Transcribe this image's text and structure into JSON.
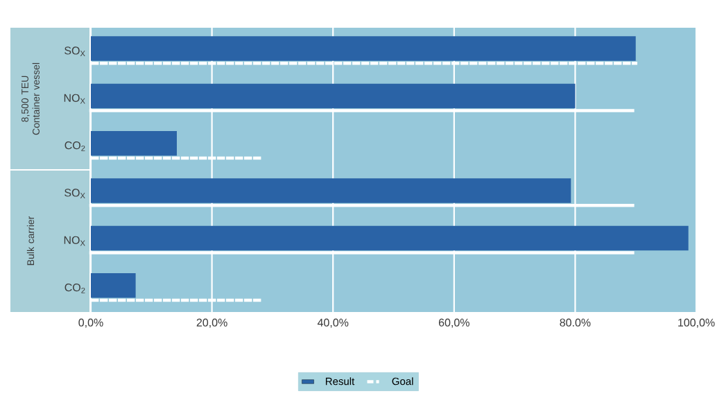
{
  "chart_data": {
    "type": "bar",
    "orientation": "horizontal",
    "categories": [
      "SO$_{X}$",
      "NO$_{X}$",
      "CO$_{2}$",
      "SO$_{X}$",
      "NO$_{X}$",
      "CO$_{2}$"
    ],
    "series": [
      {
        "name": "Result",
        "type": "bar",
        "color": "#2a63a6",
        "values": [
          90,
          80,
          14.2,
          79.3,
          98.7,
          7.4
        ]
      },
      {
        "name": "Goal",
        "type": "bar",
        "line_style": "dashed",
        "color": "#ffffff",
        "values": [
          90,
          89.5,
          28.2,
          89.5,
          89.5,
          28.2
        ]
      }
    ],
    "xlim": [
      0,
      100
    ],
    "xticks": [
      {
        "value": 0,
        "label": "0,0%"
      },
      {
        "value": 20,
        "label": "20,0%"
      },
      {
        "value": 40,
        "label": "40,0%"
      },
      {
        "value": 60,
        "label": "60,0%"
      },
      {
        "value": 80,
        "label": "80.0%"
      },
      {
        "value": 100,
        "label": "100,0%"
      }
    ],
    "grid": "x",
    "legend": "bottom",
    "annotations": [
      "8,500 TEU Container vessel",
      "Bulk carrier"
    ]
  }
}
